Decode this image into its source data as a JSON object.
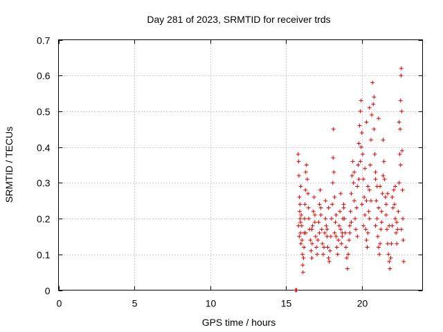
{
  "chart_data": {
    "type": "scatter",
    "title": "Day 281 of 2023, SRMTID for receiver trds",
    "xlabel": "GPS time / hours",
    "ylabel": "SRMTID / TECUs",
    "xlim": [
      0,
      24
    ],
    "ylim": [
      0,
      0.7
    ],
    "xticks": [
      0,
      5,
      10,
      15,
      20
    ],
    "yticks": [
      0,
      0.1,
      0.2,
      0.3,
      0.4,
      0.5,
      0.6,
      0.7
    ],
    "xtick_labels": [
      "0",
      "5",
      "10",
      "15",
      "20"
    ],
    "ytick_labels": [
      "0",
      "0.1",
      "0.2",
      "0.3",
      "0.4",
      "0.5",
      "0.6",
      "0.7"
    ],
    "grid": true,
    "series": [
      {
        "name": "SRMTID",
        "color": "#e00000",
        "marker": "plus",
        "points": [
          [
            15.62,
            0.0
          ],
          [
            15.68,
            0.0
          ],
          [
            15.7,
            0.0
          ],
          [
            15.8,
            0.38
          ],
          [
            15.83,
            0.36
          ],
          [
            15.85,
            0.32
          ],
          [
            15.88,
            0.26
          ],
          [
            15.9,
            0.22
          ],
          [
            15.93,
            0.2
          ],
          [
            15.95,
            0.16
          ],
          [
            15.98,
            0.13
          ],
          [
            15.82,
            0.18
          ],
          [
            15.87,
            0.15
          ],
          [
            15.92,
            0.24
          ],
          [
            15.97,
            0.29
          ],
          [
            16.0,
            0.21
          ],
          [
            16.03,
            0.18
          ],
          [
            16.05,
            0.14
          ],
          [
            16.08,
            0.1
          ],
          [
            16.1,
            0.07
          ],
          [
            16.12,
            0.05
          ],
          [
            16.15,
            0.09
          ],
          [
            16.18,
            0.12
          ],
          [
            16.2,
            0.16
          ],
          [
            16.22,
            0.2
          ],
          [
            16.25,
            0.24
          ],
          [
            16.28,
            0.28
          ],
          [
            16.3,
            0.33
          ],
          [
            16.35,
            0.35
          ],
          [
            16.4,
            0.31
          ],
          [
            16.45,
            0.27
          ],
          [
            16.48,
            0.23
          ],
          [
            16.5,
            0.2
          ],
          [
            16.55,
            0.17
          ],
          [
            16.6,
            0.14
          ],
          [
            16.65,
            0.11
          ],
          [
            16.7,
            0.09
          ],
          [
            16.72,
            0.13
          ],
          [
            16.75,
            0.18
          ],
          [
            16.8,
            0.22
          ],
          [
            16.85,
            0.26
          ],
          [
            16.9,
            0.19
          ],
          [
            16.95,
            0.15
          ],
          [
            17.0,
            0.12
          ],
          [
            17.05,
            0.1
          ],
          [
            17.1,
            0.14
          ],
          [
            17.15,
            0.19
          ],
          [
            17.2,
            0.24
          ],
          [
            17.25,
            0.28
          ],
          [
            17.3,
            0.21
          ],
          [
            17.35,
            0.17
          ],
          [
            17.4,
            0.13
          ],
          [
            17.45,
            0.1
          ],
          [
            17.5,
            0.12
          ],
          [
            17.55,
            0.16
          ],
          [
            17.6,
            0.2
          ],
          [
            17.65,
            0.18
          ],
          [
            17.7,
            0.15
          ],
          [
            17.75,
            0.12
          ],
          [
            17.8,
            0.09
          ],
          [
            17.85,
            0.08
          ],
          [
            17.9,
            0.11
          ],
          [
            17.95,
            0.15
          ],
          [
            18.0,
            0.2
          ],
          [
            18.05,
            0.24
          ],
          [
            18.08,
            0.3
          ],
          [
            18.1,
            0.37
          ],
          [
            18.12,
            0.45
          ],
          [
            18.15,
            0.33
          ],
          [
            18.2,
            0.26
          ],
          [
            18.25,
            0.19
          ],
          [
            18.3,
            0.15
          ],
          [
            18.35,
            0.12
          ],
          [
            18.4,
            0.1
          ],
          [
            18.45,
            0.14
          ],
          [
            18.5,
            0.18
          ],
          [
            18.55,
            0.22
          ],
          [
            18.6,
            0.17
          ],
          [
            18.65,
            0.13
          ],
          [
            18.7,
            0.16
          ],
          [
            18.75,
            0.2
          ],
          [
            18.8,
            0.24
          ],
          [
            18.85,
            0.2
          ],
          [
            18.9,
            0.16
          ],
          [
            18.95,
            0.12
          ],
          [
            19.0,
            0.09
          ],
          [
            19.05,
            0.06
          ],
          [
            19.1,
            0.1
          ],
          [
            19.15,
            0.14
          ],
          [
            19.2,
            0.18
          ],
          [
            19.25,
            0.22
          ],
          [
            19.3,
            0.27
          ],
          [
            19.35,
            0.32
          ],
          [
            19.4,
            0.36
          ],
          [
            19.45,
            0.3
          ],
          [
            19.5,
            0.25
          ],
          [
            19.55,
            0.2
          ],
          [
            19.6,
            0.17
          ],
          [
            19.65,
            0.23
          ],
          [
            19.7,
            0.29
          ],
          [
            19.75,
            0.35
          ],
          [
            19.8,
            0.41
          ],
          [
            19.85,
            0.46
          ],
          [
            19.9,
            0.5
          ],
          [
            19.95,
            0.53
          ],
          [
            20.0,
            0.44
          ],
          [
            20.05,
            0.38
          ],
          [
            20.1,
            0.31
          ],
          [
            20.15,
            0.26
          ],
          [
            20.2,
            0.21
          ],
          [
            20.25,
            0.17
          ],
          [
            20.3,
            0.14
          ],
          [
            20.35,
            0.12
          ],
          [
            20.4,
            0.16
          ],
          [
            20.45,
            0.22
          ],
          [
            20.5,
            0.28
          ],
          [
            20.55,
            0.35
          ],
          [
            20.6,
            0.42
          ],
          [
            20.65,
            0.49
          ],
          [
            20.7,
            0.58
          ],
          [
            20.75,
            0.52
          ],
          [
            20.8,
            0.45
          ],
          [
            20.85,
            0.38
          ],
          [
            20.9,
            0.31
          ],
          [
            20.95,
            0.25
          ],
          [
            21.0,
            0.2
          ],
          [
            21.05,
            0.15
          ],
          [
            21.1,
            0.12
          ],
          [
            21.15,
            0.1
          ],
          [
            21.2,
            0.13
          ],
          [
            21.25,
            0.17
          ],
          [
            21.3,
            0.22
          ],
          [
            21.35,
            0.27
          ],
          [
            21.4,
            0.32
          ],
          [
            21.45,
            0.36
          ],
          [
            21.5,
            0.31
          ],
          [
            21.55,
            0.26
          ],
          [
            21.6,
            0.21
          ],
          [
            21.65,
            0.17
          ],
          [
            21.7,
            0.13
          ],
          [
            21.75,
            0.1
          ],
          [
            21.8,
            0.08
          ],
          [
            21.85,
            0.06
          ],
          [
            21.9,
            0.09
          ],
          [
            21.95,
            0.13
          ],
          [
            22.0,
            0.18
          ],
          [
            22.05,
            0.23
          ],
          [
            22.1,
            0.28
          ],
          [
            22.15,
            0.24
          ],
          [
            22.2,
            0.2
          ],
          [
            22.25,
            0.16
          ],
          [
            22.3,
            0.13
          ],
          [
            22.35,
            0.17
          ],
          [
            22.4,
            0.22
          ],
          [
            22.45,
            0.3
          ],
          [
            22.5,
            0.38
          ],
          [
            22.52,
            0.45
          ],
          [
            22.55,
            0.53
          ],
          [
            22.58,
            0.6
          ],
          [
            22.6,
            0.62
          ],
          [
            22.62,
            0.5
          ],
          [
            22.65,
            0.39
          ],
          [
            22.68,
            0.28
          ],
          [
            22.7,
            0.2
          ],
          [
            22.72,
            0.14
          ],
          [
            22.75,
            0.08
          ],
          [
            19.5,
            0.33
          ],
          [
            19.9,
            0.36
          ],
          [
            20.2,
            0.34
          ],
          [
            20.4,
            0.29
          ],
          [
            20.9,
            0.33
          ],
          [
            21.2,
            0.29
          ],
          [
            21.7,
            0.27
          ],
          [
            22.0,
            0.26
          ],
          [
            17.3,
            0.23
          ],
          [
            17.8,
            0.23
          ],
          [
            18.3,
            0.21
          ],
          [
            18.8,
            0.23
          ],
          [
            19.3,
            0.19
          ],
          [
            20.0,
            0.24
          ],
          [
            20.6,
            0.25
          ],
          [
            21.1,
            0.23
          ],
          [
            16.9,
            0.21
          ],
          [
            17.6,
            0.25
          ],
          [
            18.6,
            0.27
          ],
          [
            19.8,
            0.31
          ],
          [
            20.3,
            0.25
          ],
          [
            21.6,
            0.24
          ],
          [
            22.2,
            0.29
          ],
          [
            21.0,
            0.29
          ],
          [
            16.3,
            0.16
          ],
          [
            16.7,
            0.17
          ],
          [
            17.2,
            0.16
          ],
          [
            17.7,
            0.17
          ],
          [
            18.2,
            0.16
          ],
          [
            18.7,
            0.15
          ],
          [
            19.2,
            0.16
          ],
          [
            19.7,
            0.15
          ],
          [
            20.1,
            0.18
          ],
          [
            20.5,
            0.2
          ],
          [
            20.9,
            0.18
          ],
          [
            21.3,
            0.19
          ],
          [
            21.8,
            0.18
          ],
          [
            22.3,
            0.19
          ],
          [
            22.6,
            0.17
          ],
          [
            15.95,
            0.19
          ],
          [
            20.8,
            0.54
          ],
          [
            20.5,
            0.51
          ],
          [
            20.3,
            0.47
          ],
          [
            19.95,
            0.4
          ],
          [
            21.1,
            0.48
          ],
          [
            21.4,
            0.42
          ],
          [
            22.45,
            0.47
          ],
          [
            22.55,
            0.35
          ]
        ]
      }
    ]
  }
}
